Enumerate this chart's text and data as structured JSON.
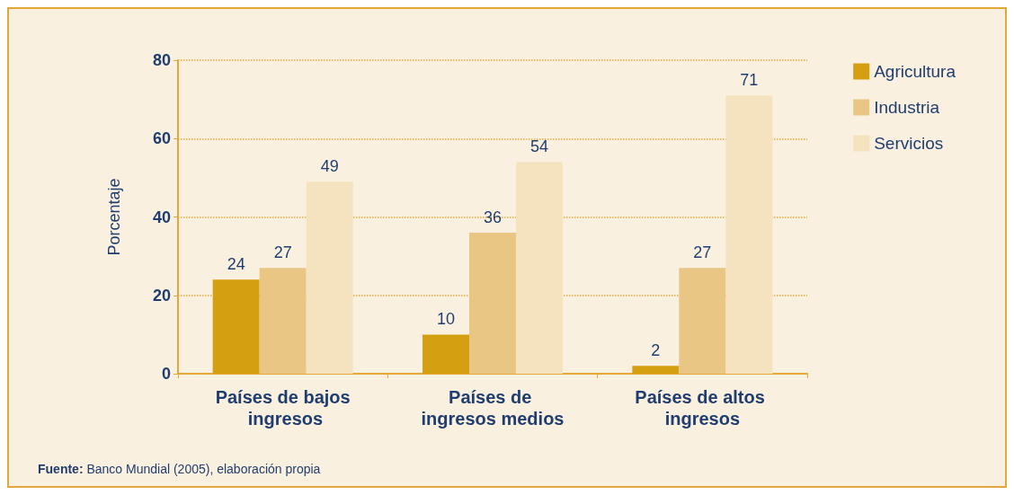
{
  "chart_data": {
    "type": "bar",
    "ylabel": "Porcentaje",
    "categories": [
      "Países de bajos ingresos",
      "Países de ingresos medios",
      "Países de altos ingresos"
    ],
    "series": [
      {
        "name": "Agricultura",
        "color": "#d49f10",
        "values": [
          24,
          10,
          2
        ]
      },
      {
        "name": "Industria",
        "color": "#e9c684",
        "values": [
          27,
          36,
          27
        ]
      },
      {
        "name": "Servicios",
        "color": "#f5e2bf",
        "values": [
          49,
          54,
          71
        ]
      }
    ],
    "ylim": [
      0,
      80
    ],
    "yticks": [
      0,
      20,
      40,
      60,
      80
    ],
    "grid": "y",
    "legend": "top right",
    "data_labels": true,
    "annotations": [
      "Fuente: Banco Mundial (2005), elaboración propia"
    ]
  }
}
